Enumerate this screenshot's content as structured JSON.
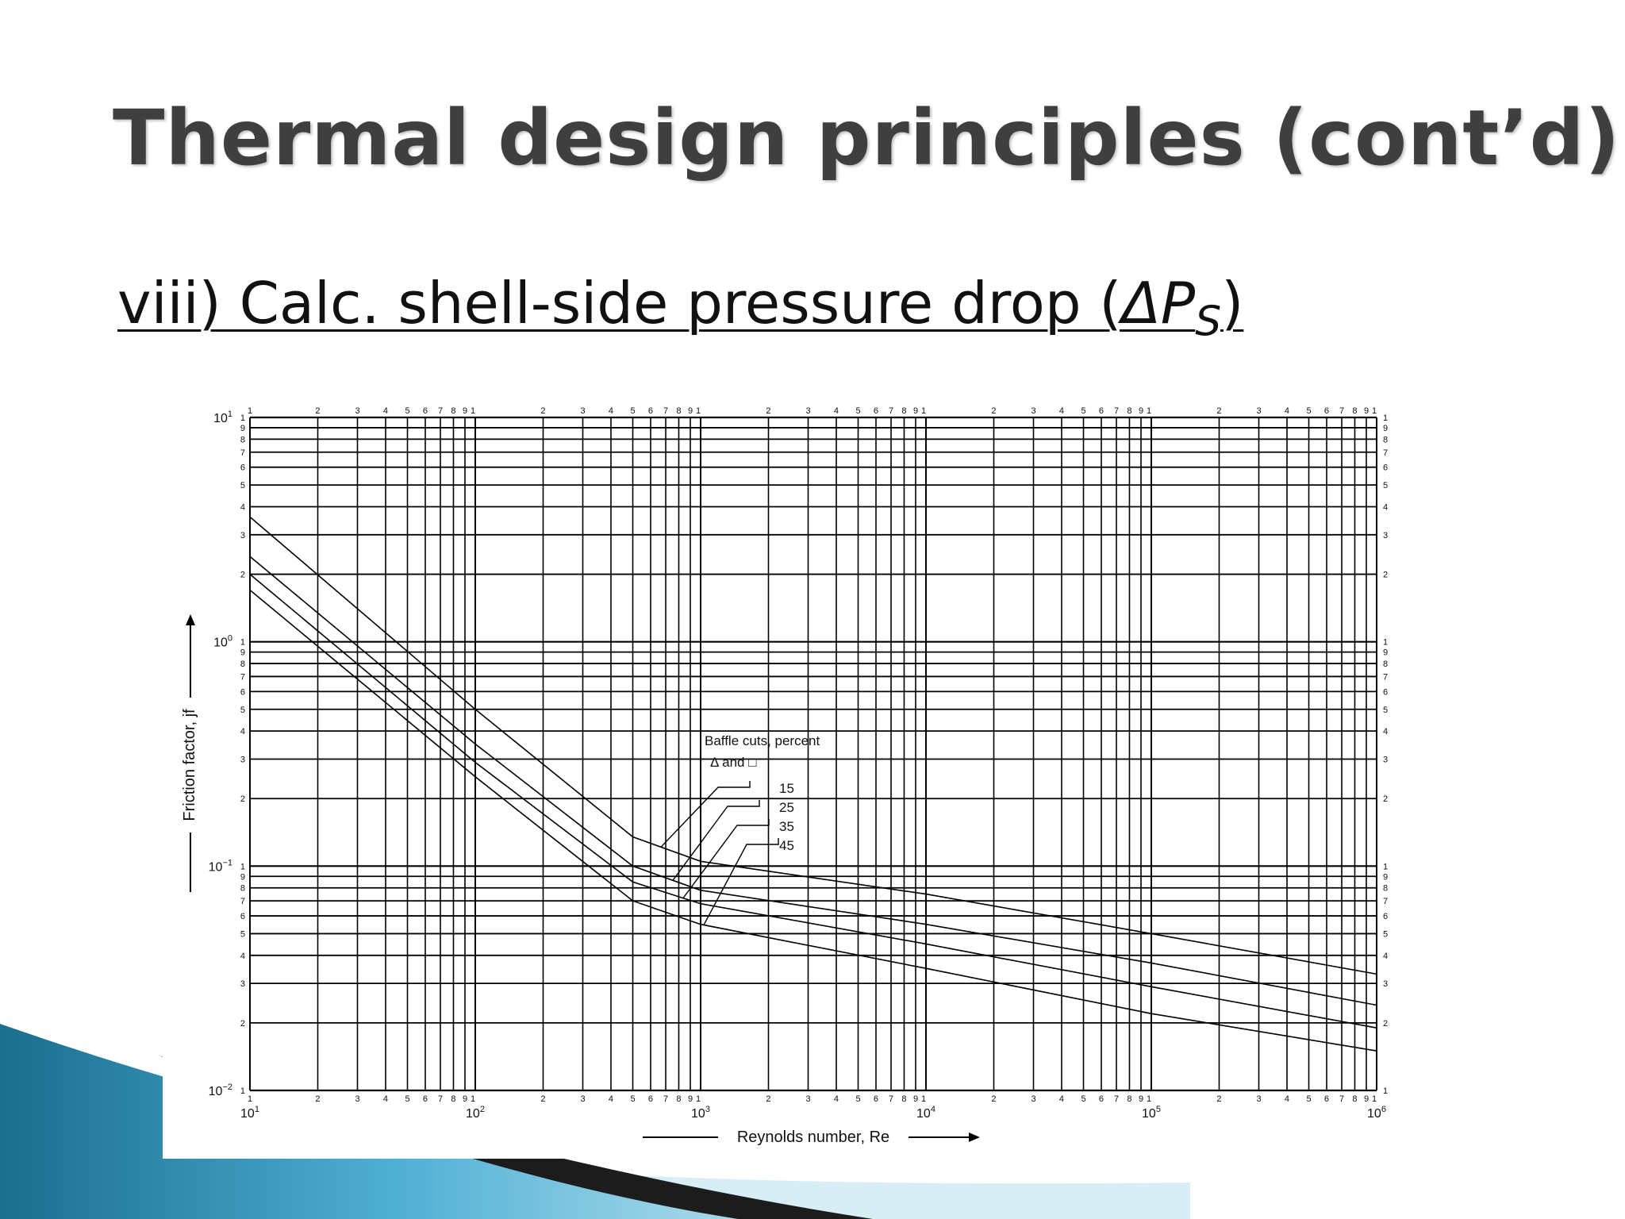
{
  "slide": {
    "title": "Thermal design principles (cont’d)",
    "subtitle_prefix": "viii) Calc. shell-side pressure drop (",
    "subtitle_symbol": "ΔP",
    "subtitle_sub": "S",
    "subtitle_suffix": ")"
  },
  "chart_data": {
    "type": "line",
    "title": "",
    "xlabel": "Reynolds number, Re",
    "ylabel": "Friction factor, jf",
    "x_scale": "log",
    "y_scale": "log",
    "xlim": [
      10,
      1000000
    ],
    "ylim": [
      0.01,
      10
    ],
    "grid": true,
    "x_decade_labels": [
      {
        "base": "10",
        "exp": "1"
      },
      {
        "base": "10",
        "exp": "2"
      },
      {
        "base": "10",
        "exp": "3"
      },
      {
        "base": "10",
        "exp": "4"
      },
      {
        "base": "10",
        "exp": "5"
      },
      {
        "base": "10",
        "exp": "6"
      }
    ],
    "y_decade_labels": [
      {
        "base": "10",
        "exp": "1"
      },
      {
        "base": "10",
        "exp": "0"
      },
      {
        "base": "10",
        "exp": "−1"
      },
      {
        "base": "10",
        "exp": "−2"
      }
    ],
    "minor_tick_labels": [
      "1",
      "2",
      "3",
      "4",
      "5",
      "6",
      "7",
      "8",
      "9",
      "1"
    ],
    "legend": {
      "title": "Baffle cuts, percent",
      "subtitle": "Δ and □",
      "entries": [
        "15",
        "25",
        "35",
        "45"
      ]
    },
    "series": [
      {
        "name": "15",
        "points": [
          [
            10,
            3.6
          ],
          [
            100,
            0.5
          ],
          [
            500,
            0.135
          ],
          [
            1000,
            0.105
          ],
          [
            10000,
            0.075
          ],
          [
            100000,
            0.05
          ],
          [
            1000000,
            0.033
          ]
        ]
      },
      {
        "name": "25",
        "points": [
          [
            10,
            2.4
          ],
          [
            100,
            0.35
          ],
          [
            500,
            0.1
          ],
          [
            1000,
            0.078
          ],
          [
            10000,
            0.055
          ],
          [
            100000,
            0.037
          ],
          [
            1000000,
            0.024
          ]
        ]
      },
      {
        "name": "35",
        "points": [
          [
            10,
            2.0
          ],
          [
            100,
            0.29
          ],
          [
            500,
            0.085
          ],
          [
            1000,
            0.068
          ],
          [
            10000,
            0.045
          ],
          [
            100000,
            0.029
          ],
          [
            1000000,
            0.019
          ]
        ]
      },
      {
        "name": "45",
        "points": [
          [
            10,
            1.7
          ],
          [
            100,
            0.25
          ],
          [
            500,
            0.07
          ],
          [
            1000,
            0.055
          ],
          [
            10000,
            0.035
          ],
          [
            100000,
            0.022
          ],
          [
            1000000,
            0.015
          ]
        ]
      }
    ]
  }
}
